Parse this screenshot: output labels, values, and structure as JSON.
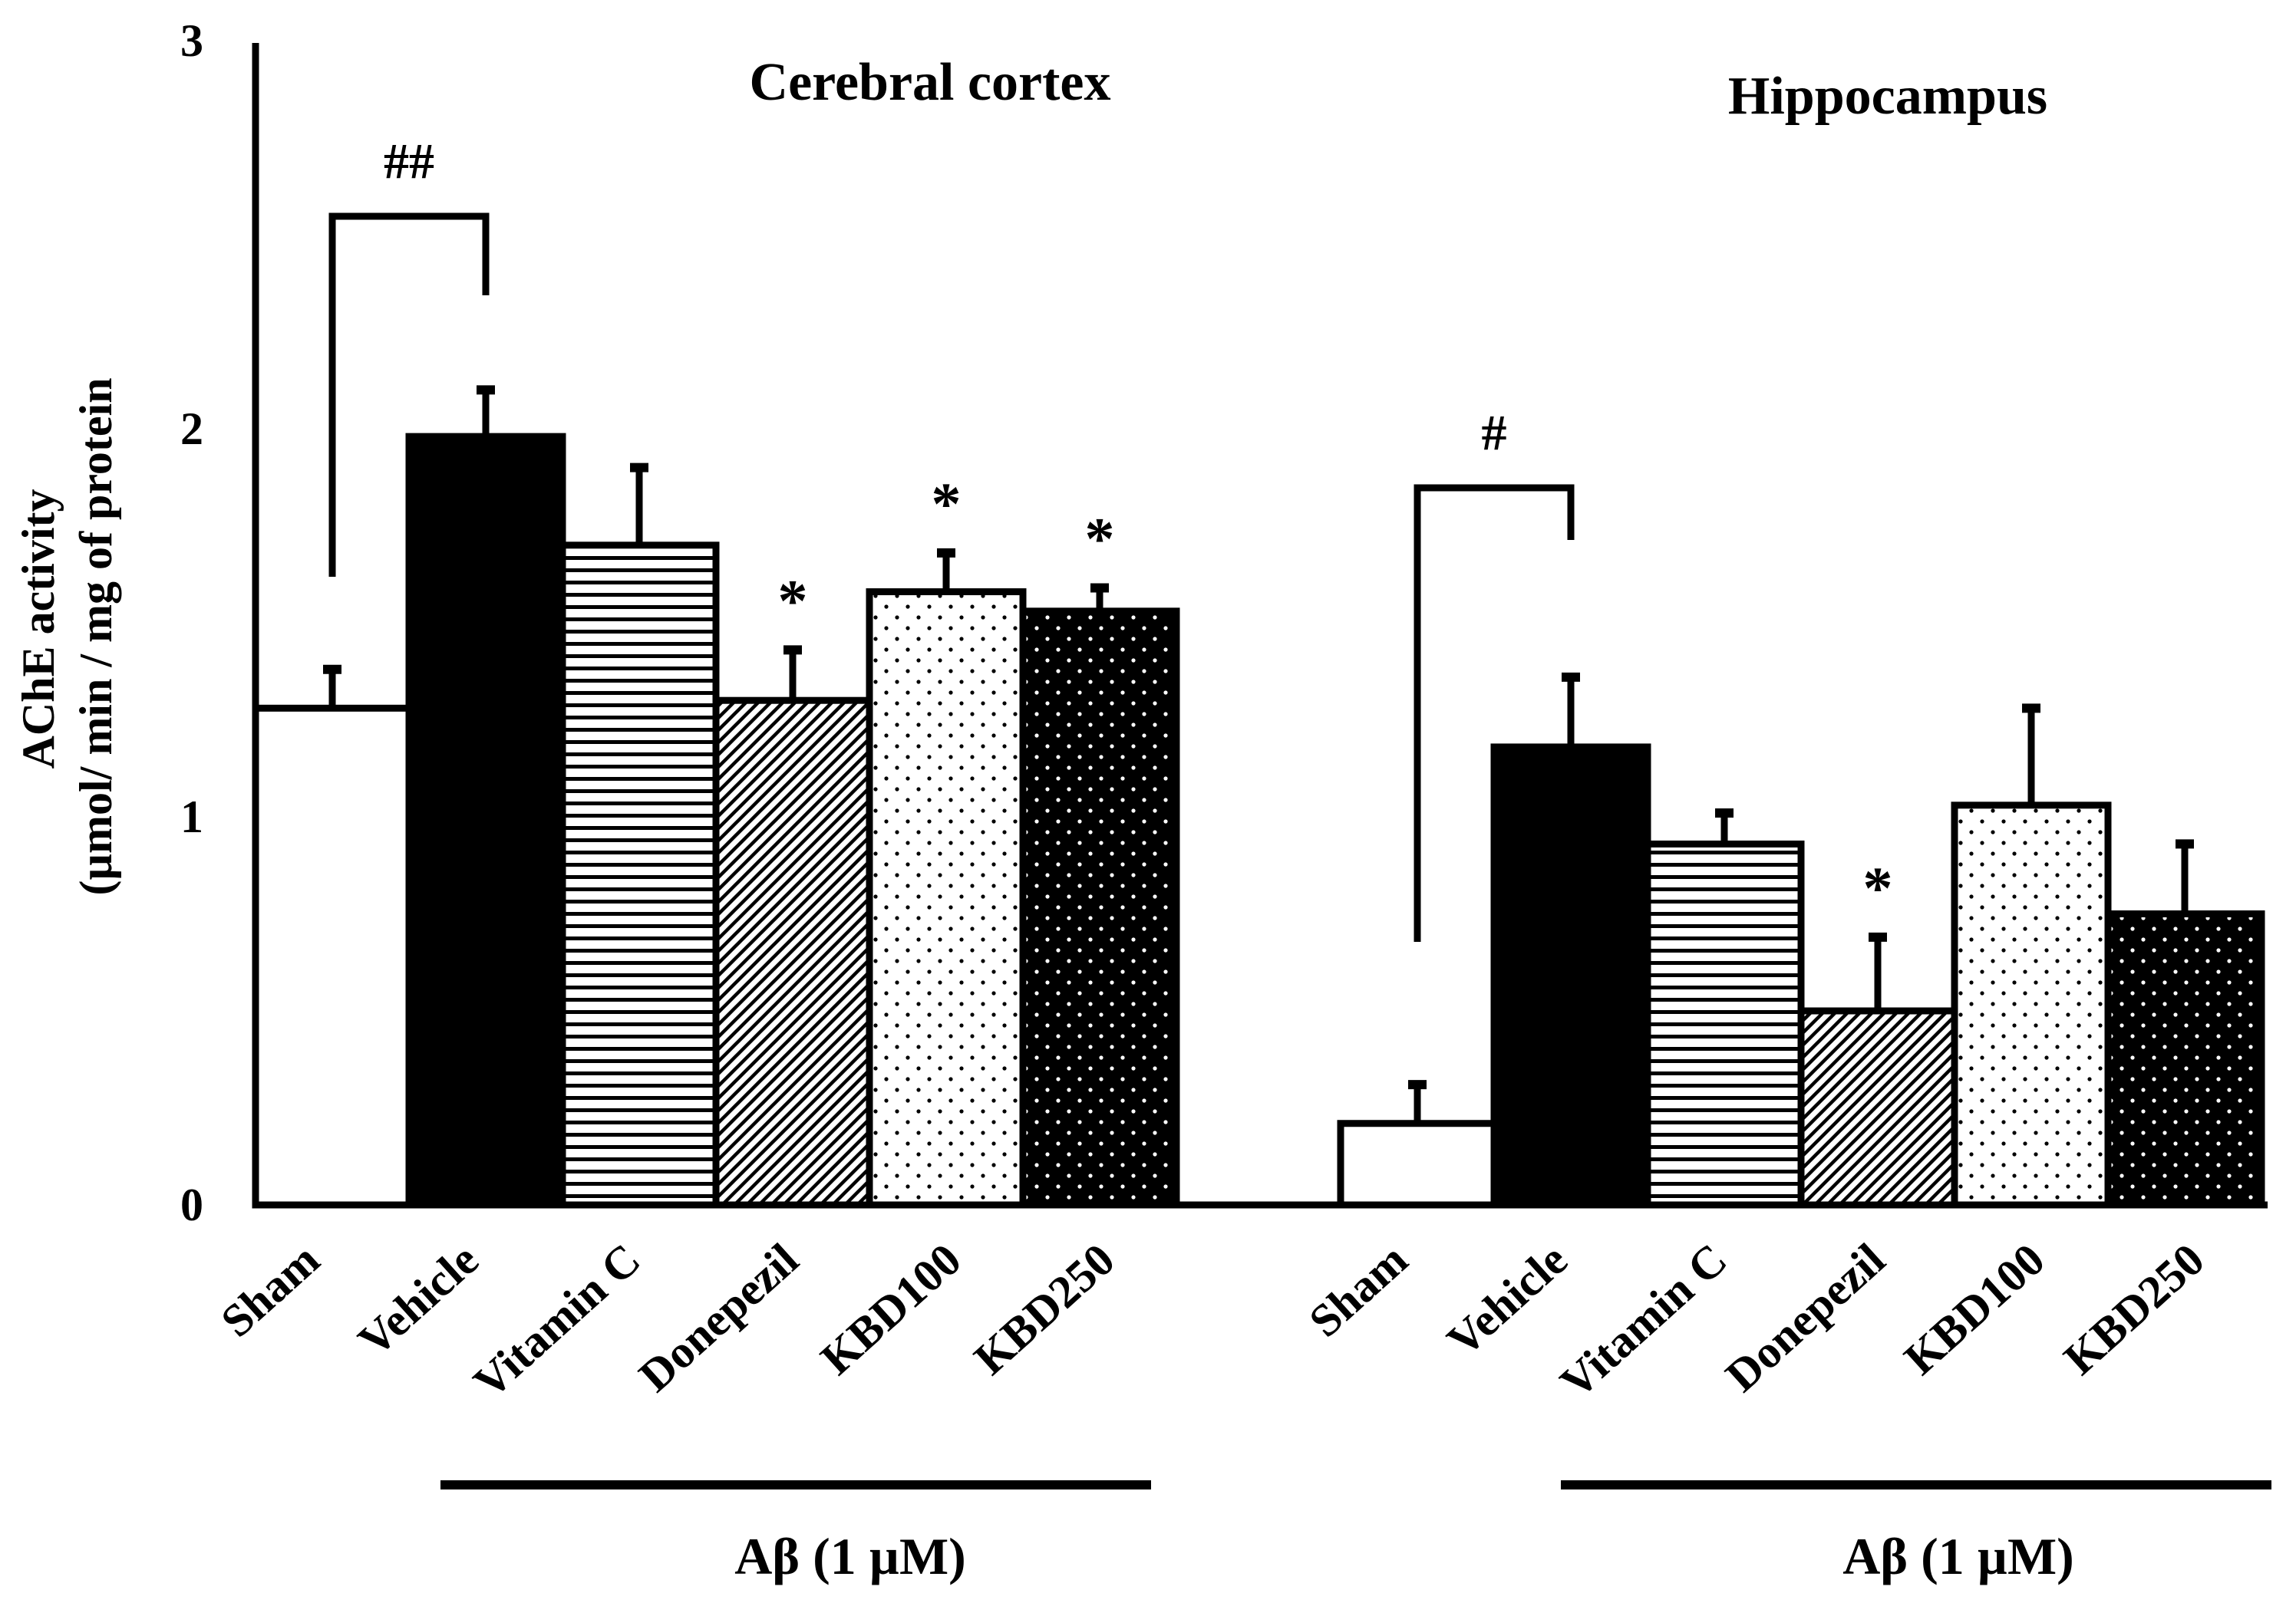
{
  "chart_data": {
    "type": "bar",
    "ylabel_line1": "AChE activity",
    "ylabel_line2": "(µmol/ min / mg of protein",
    "ylim": [
      0,
      3
    ],
    "yticks": [
      0,
      1,
      2,
      3
    ],
    "categories": [
      "Sham",
      "Vehicle",
      "Vitamin C",
      "Donepezil",
      "KBD100",
      "KBD250"
    ],
    "patterns": [
      "white",
      "black",
      "hlines",
      "diagonal",
      "dots-light",
      "dots-dark"
    ],
    "groups": [
      {
        "title": "Cerebral cortex",
        "values": [
          1.28,
          1.98,
          1.7,
          1.3,
          1.58,
          1.53
        ],
        "errors": [
          0.1,
          0.12,
          0.2,
          0.13,
          0.1,
          0.06
        ],
        "markers": [
          "",
          "",
          "",
          "*",
          "*",
          "*"
        ],
        "comparison": {
          "label": "##",
          "from": 0,
          "to": 1
        },
        "treatment_label": "Aβ (1 µM)"
      },
      {
        "title": "Hippocampus",
        "values": [
          0.21,
          1.18,
          0.93,
          0.5,
          1.03,
          0.75
        ],
        "errors": [
          0.1,
          0.18,
          0.08,
          0.19,
          0.25,
          0.18
        ],
        "markers": [
          "",
          "",
          "",
          "*",
          "",
          ""
        ],
        "comparison": {
          "label": "#",
          "from": 0,
          "to": 1
        },
        "treatment_label": "Aβ (1 µM)"
      }
    ]
  }
}
